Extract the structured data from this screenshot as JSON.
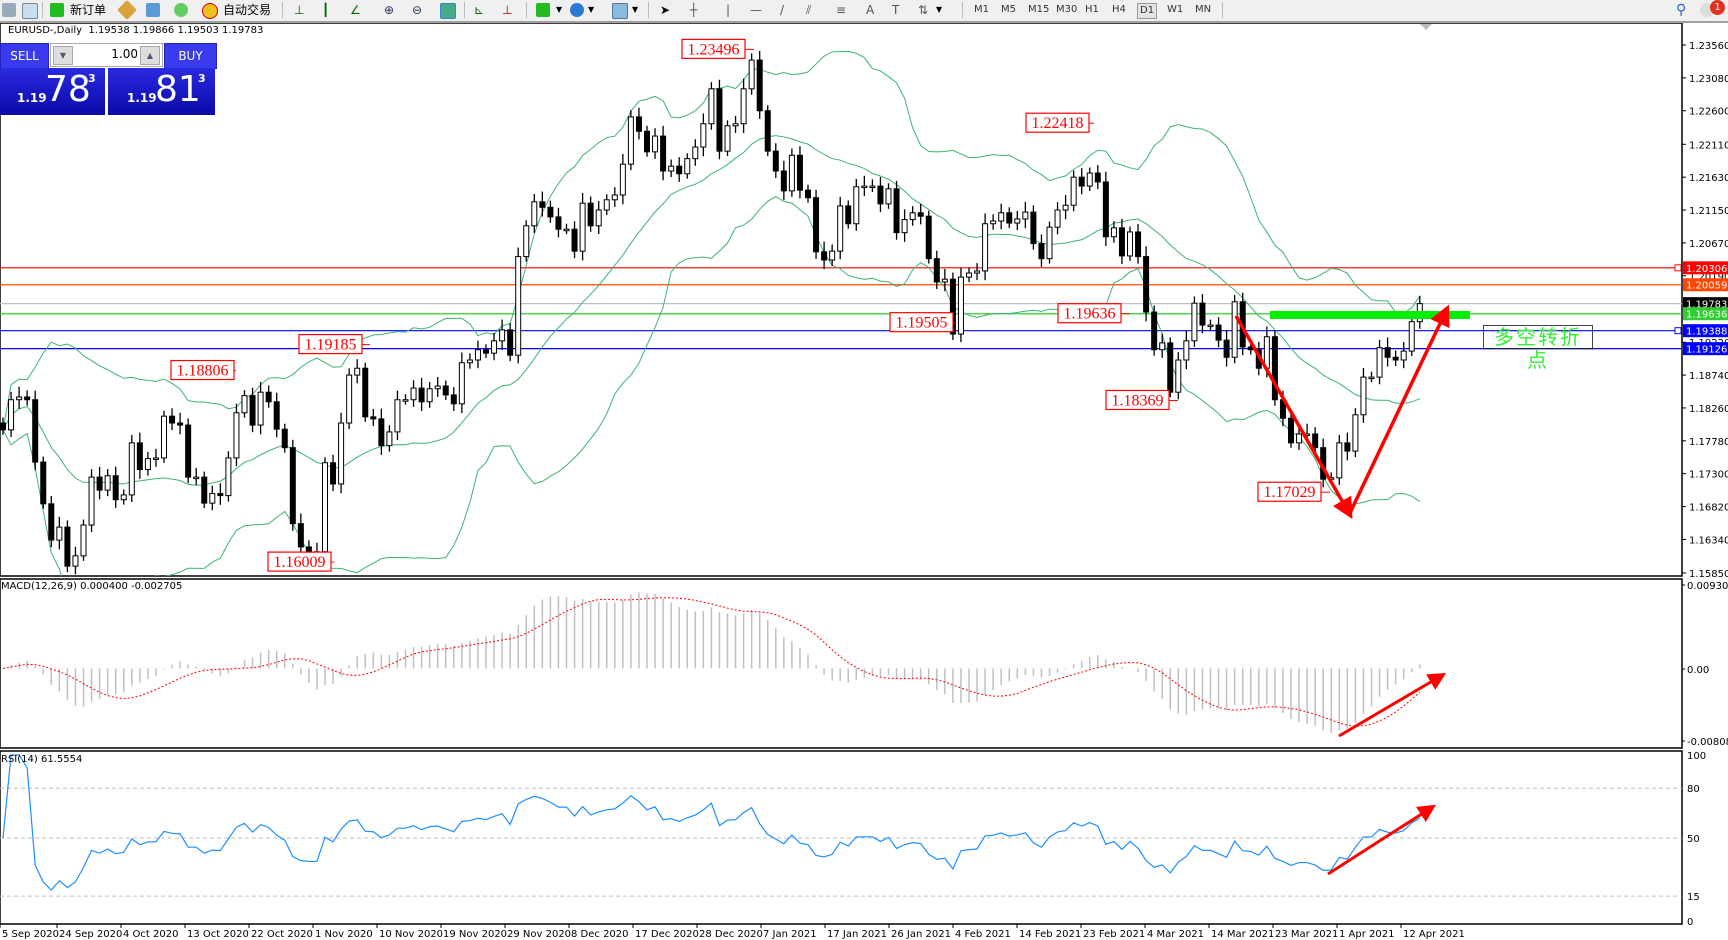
{
  "toolbar": {
    "new_order": "新订单",
    "auto_trading": "自动交易",
    "timeframes": [
      "M1",
      "M5",
      "M15",
      "M30",
      "H1",
      "H4",
      "D1",
      "W1",
      "MN"
    ],
    "active_timeframe": "D1",
    "notification_count": "1"
  },
  "chart_header": "EURUSD-,Daily  1.19538 1.19866 1.19503 1.19783",
  "trade_panel": {
    "sell_label": "SELL",
    "buy_label": "BUY",
    "volume": "1.00",
    "sell_price": {
      "prefix": "1.19",
      "big": "78",
      "sup": "3"
    },
    "buy_price": {
      "prefix": "1.19",
      "big": "81",
      "sup": "3"
    }
  },
  "note_text": "多空转折点",
  "chart_data": {
    "type": "candlestick",
    "symbol": "EURUSD-",
    "timeframe": "Daily",
    "ylim": [
      1.1585,
      1.2356
    ],
    "close": [
      1.1794,
      1.1838,
      1.1842,
      1.1838,
      1.1747,
      1.1686,
      1.1633,
      1.1652,
      1.1595,
      1.161,
      1.1655,
      1.1725,
      1.1706,
      1.1727,
      1.1692,
      1.1699,
      1.1775,
      1.1736,
      1.1752,
      1.1753,
      1.1814,
      1.1804,
      1.1801,
      1.1725,
      1.1725,
      1.1687,
      1.1701,
      1.1698,
      1.1753,
      1.1819,
      1.1844,
      1.1801,
      1.1849,
      1.1835,
      1.1795,
      1.1768,
      1.1657,
      1.1623,
      1.1616,
      1.1616,
      1.1746,
      1.1715,
      1.1804,
      1.1874,
      1.1884,
      1.1813,
      1.181,
      1.1771,
      1.1791,
      1.1838,
      1.1838,
      1.1855,
      1.1835,
      1.1854,
      1.1858,
      1.1845,
      1.1832,
      1.1892,
      1.1896,
      1.1911,
      1.1906,
      1.1924,
      1.194,
      1.1903,
      1.2047,
      1.2092,
      1.2127,
      1.2119,
      1.2105,
      1.2087,
      1.2087,
      1.2055,
      1.2125,
      1.2092,
      1.2115,
      1.213,
      1.2137,
      1.2182,
      1.2251,
      1.223,
      1.22,
      1.2223,
      1.2172,
      1.2179,
      1.2168,
      1.219,
      1.2207,
      1.2241,
      1.2292,
      1.2201,
      1.2238,
      1.2241,
      1.2292,
      1.2334,
      1.226,
      1.2201,
      1.2172,
      1.2143,
      1.2195,
      1.2144,
      1.2133,
      1.2054,
      1.2042,
      1.2055,
      1.2121,
      1.2095,
      1.2149,
      1.215,
      1.215,
      1.2124,
      1.2146,
      1.2082,
      1.2101,
      1.2111,
      1.2106,
      1.2044,
      1.201,
      1.2014,
      1.1934,
      1.2017,
      1.2023,
      1.2026,
      1.2095,
      1.2099,
      1.2111,
      1.2096,
      1.2102,
      1.2112,
      1.2066,
      1.2044,
      1.209,
      1.2115,
      1.2122,
      1.2163,
      1.215,
      1.2169,
      1.2156,
      1.2076,
      1.2089,
      1.2048,
      1.2083,
      1.2047,
      1.1966,
      1.1911,
      1.1921,
      1.1849,
      1.1896,
      1.1924,
      1.1979,
      1.1947,
      1.1947,
      1.1925,
      1.19,
      1.1981,
      1.1915,
      1.1911,
      1.1884,
      1.193,
      1.1838,
      1.1811,
      1.1775,
      1.1788,
      1.1788,
      1.1768,
      1.1722,
      1.1724,
      1.1775,
      1.1763,
      1.1816,
      1.1871,
      1.1871,
      1.1914,
      1.19,
      1.1896,
      1.1909,
      1.1952,
      1.19783
    ],
    "price_ticks": [
      "1.23560",
      "1.23080",
      "1.22600",
      "1.22110",
      "1.21630",
      "1.21150",
      "1.20670",
      "1.20190",
      "1.19220",
      "1.18740",
      "1.18260",
      "1.17780",
      "1.17300",
      "1.16820",
      "1.16340",
      "1.15850"
    ],
    "x_ticks": [
      "5 Sep 2020",
      "24 Sep 2020",
      "4 Oct 2020",
      "13 Oct 2020",
      "22 Oct 2020",
      "1 Nov 2020",
      "10 Nov 2020",
      "19 Nov 2020",
      "29 Nov 2020",
      "8 Dec 2020",
      "17 Dec 2020",
      "28 Dec 2020",
      "7 Jan 2021",
      "17 Jan 2021",
      "26 Jan 2021",
      "4 Feb 2021",
      "14 Feb 2021",
      "23 Feb 2021",
      "4 Mar 2021",
      "14 Mar 2021",
      "23 Mar 2021",
      "1 Apr 2021",
      "12 Apr 2021"
    ],
    "horizontal_lines": [
      {
        "price": "1.20306",
        "color": "#ff0000"
      },
      {
        "price": "1.20059",
        "color": "#ff4500"
      },
      {
        "price": "1.19783",
        "color": "#c0c0c0",
        "label_bg": "#000000"
      },
      {
        "price": "1.19636",
        "color": "#32cd32"
      },
      {
        "price": "1.19388",
        "color": "#0000ff"
      },
      {
        "price": "1.19126",
        "color": "#0000ff"
      }
    ],
    "price_annotations": [
      "1.23496",
      "1.22418",
      "1.18806",
      "1.19185",
      "1.19505",
      "1.19636",
      "1.18369",
      "1.16009",
      "1.17029"
    ],
    "bollinger_color": "#3cb371",
    "macd": {
      "label": "MACD(12,26,9) 0.000400 -0.002705",
      "ylim": [
        -0.008082,
        0.009301
      ],
      "ticks": [
        "0.009301",
        "0.00",
        "-0.008082"
      ],
      "histogram_color": "#c0c0c0",
      "signal_color": "#ff0000"
    },
    "rsi": {
      "label": "RSI(14) 61.5554",
      "ylim": [
        0,
        100
      ],
      "levels": [
        80,
        50,
        15
      ],
      "ticks": [
        "100",
        "80",
        "50",
        "15",
        "0"
      ],
      "color": "#1e90ff"
    },
    "arrow_color": "#ff0000",
    "support_bar_color": "#00ee00"
  }
}
